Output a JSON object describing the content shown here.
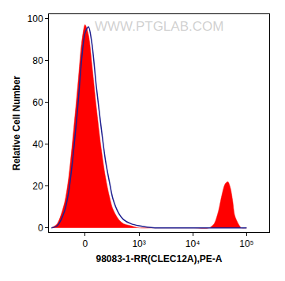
{
  "chart_data": {
    "type": "histogram",
    "watermark": "WWW.PTGLAB.COM",
    "x_label": "98083-1-RR(CLEC12A),PE-A",
    "y_label": "Relative Cell Number",
    "x": [
      -400,
      -300,
      -200,
      -150,
      -100,
      -60,
      -30,
      0,
      30,
      60,
      100,
      150,
      200,
      250,
      300,
      400,
      500,
      700,
      1000,
      2000,
      5000,
      10000,
      20000,
      25000,
      30000,
      35000,
      40000,
      45000,
      50000,
      55000,
      60000,
      70000,
      80000,
      100000
    ],
    "series": [
      {
        "type": "area",
        "color": "#ff0000",
        "values": [
          0,
          2,
          12,
          25,
          48,
          70,
          88,
          97,
          92,
          78,
          58,
          38,
          24,
          15,
          9,
          4,
          2,
          1,
          0,
          0,
          0,
          0,
          0,
          2,
          8,
          16,
          21,
          22,
          19,
          13,
          6,
          2,
          0,
          0
        ]
      },
      {
        "type": "line",
        "color": "#1f1f8f",
        "values": [
          0,
          1,
          8,
          18,
          38,
          60,
          80,
          93,
          96,
          88,
          68,
          48,
          32,
          22,
          14,
          7,
          4,
          2,
          1,
          0,
          0,
          0,
          0,
          0,
          0,
          0,
          0,
          0,
          0,
          0,
          0,
          0,
          0,
          0
        ]
      }
    ],
    "xlim": [
      -450,
      262144
    ],
    "xticks": [
      0,
      {
        "value": 1000,
        "label": "10³"
      },
      {
        "value": 10000,
        "label": "10⁴"
      },
      {
        "value": 100000,
        "label": "10⁵"
      }
    ],
    "ylim": [
      -2,
      102
    ],
    "yticks": [
      0,
      20,
      40,
      60,
      80,
      100
    ],
    "grid": false
  }
}
